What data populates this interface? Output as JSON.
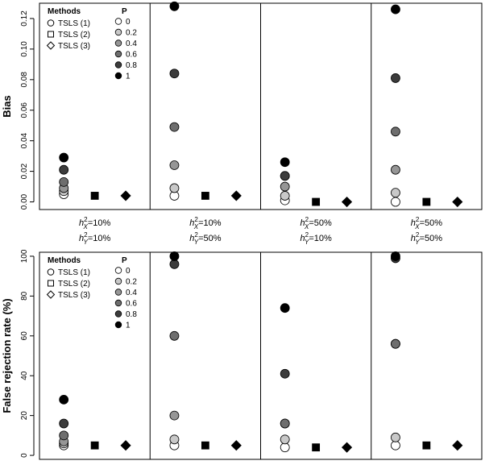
{
  "chart_data": [
    {
      "type": "scatter",
      "title": "",
      "ylabel": "Bias",
      "xlabel": "",
      "ylim": [
        -0.005,
        0.13
      ],
      "yticks": [
        "0.00",
        "0.02",
        "0.04",
        "0.06",
        "0.08",
        "0.10",
        "0.12"
      ],
      "groups": [
        {
          "h2x": "10%",
          "h2y": "10%"
        },
        {
          "h2x": "10%",
          "h2y": "50%"
        },
        {
          "h2x": "50%",
          "h2y": "10%"
        },
        {
          "h2x": "50%",
          "h2y": "50%"
        }
      ],
      "methods": [
        "TSLS (1)",
        "TSLS (2)",
        "TSLS (3)"
      ],
      "series": [
        {
          "method": "TSLS (1)",
          "name": "P=0",
          "values": [
            0.005,
            0.004,
            0.001,
            0.0
          ]
        },
        {
          "method": "TSLS (1)",
          "name": "P=0.2",
          "values": [
            0.007,
            0.009,
            0.004,
            0.006
          ]
        },
        {
          "method": "TSLS (1)",
          "name": "P=0.4",
          "values": [
            0.009,
            0.024,
            0.01,
            0.021
          ]
        },
        {
          "method": "TSLS (1)",
          "name": "P=0.6",
          "values": [
            0.013,
            0.049,
            0.017,
            0.046
          ]
        },
        {
          "method": "TSLS (1)",
          "name": "P=0.8",
          "values": [
            0.021,
            0.084,
            0.017,
            0.081
          ]
        },
        {
          "method": "TSLS (1)",
          "name": "P=1",
          "values": [
            0.029,
            0.128,
            0.026,
            0.126
          ]
        },
        {
          "method": "TSLS (2)",
          "name": "all P",
          "values": [
            0.004,
            0.004,
            0.0,
            0.0
          ]
        },
        {
          "method": "TSLS (3)",
          "name": "all P",
          "values": [
            0.004,
            0.004,
            0.0,
            0.0
          ]
        }
      ]
    },
    {
      "type": "scatter",
      "title": "",
      "ylabel": "False rejection rate (%)",
      "xlabel": "",
      "ylim": [
        -2,
        102
      ],
      "yticks": [
        "0",
        "20",
        "40",
        "60",
        "80",
        "100"
      ],
      "groups": [
        {
          "h2x": "10%",
          "h2y": "10%"
        },
        {
          "h2x": "10%",
          "h2y": "50%"
        },
        {
          "h2x": "50%",
          "h2y": "10%"
        },
        {
          "h2x": "50%",
          "h2y": "50%"
        }
      ],
      "methods": [
        "TSLS (1)",
        "TSLS (2)",
        "TSLS (3)"
      ],
      "series": [
        {
          "method": "TSLS (1)",
          "name": "P=0",
          "values": [
            5,
            5,
            4,
            5
          ]
        },
        {
          "method": "TSLS (1)",
          "name": "P=0.2",
          "values": [
            6,
            8,
            8,
            9
          ]
        },
        {
          "method": "TSLS (1)",
          "name": "P=0.4",
          "values": [
            7,
            20,
            16,
            56
          ]
        },
        {
          "method": "TSLS (1)",
          "name": "P=0.6",
          "values": [
            10,
            60,
            16,
            56
          ]
        },
        {
          "method": "TSLS (1)",
          "name": "P=0.8",
          "values": [
            16,
            96,
            41,
            99
          ]
        },
        {
          "method": "TSLS (1)",
          "name": "P=1",
          "values": [
            28,
            100,
            74,
            100
          ]
        },
        {
          "method": "TSLS (2)",
          "name": "all P",
          "values": [
            5,
            5,
            4,
            5
          ]
        },
        {
          "method": "TSLS (3)",
          "name": "all P",
          "values": [
            5,
            5,
            4,
            5
          ]
        }
      ]
    }
  ],
  "legend": {
    "methods_title": "Methods",
    "p_title": "P",
    "p_values": [
      "0",
      "0.2",
      "0.4",
      "0.6",
      "0.8",
      "1"
    ],
    "p_colors": [
      "#ffffff",
      "#c8c8c8",
      "#969696",
      "#6e6e6e",
      "#3c3c3c",
      "#000000"
    ]
  },
  "group_labels": [
    {
      "x_label": "h",
      "x_sub": "X",
      "x_sup": "2",
      "x_val": "=10%",
      "y_label": "h",
      "y_sub": "Y",
      "y_sup": "2",
      "y_val": "=10%"
    },
    {
      "x_label": "h",
      "x_sub": "X",
      "x_sup": "2",
      "x_val": "=10%",
      "y_label": "h",
      "y_sub": "Y",
      "y_sup": "2",
      "y_val": "=50%"
    },
    {
      "x_label": "h",
      "x_sub": "X",
      "x_sup": "2",
      "x_val": "=50%",
      "y_label": "h",
      "y_sub": "Y",
      "y_sup": "2",
      "y_val": "=10%"
    },
    {
      "x_label": "h",
      "x_sub": "X",
      "x_sup": "2",
      "x_val": "=50%",
      "y_label": "h",
      "y_sub": "Y",
      "y_sup": "2",
      "y_val": "=50%"
    }
  ]
}
